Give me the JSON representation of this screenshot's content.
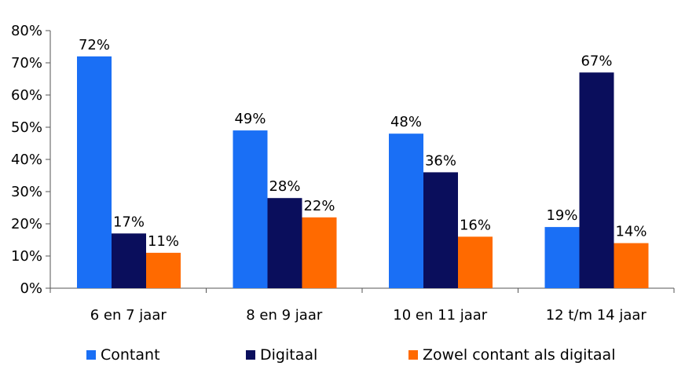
{
  "chart_data": {
    "type": "bar",
    "title": "",
    "xlabel": "",
    "ylabel": "",
    "categories": [
      "6 en 7 jaar",
      "8 en 9 jaar",
      "10 en 11 jaar",
      "12 t/m 14 jaar"
    ],
    "series": [
      {
        "name": "Contant",
        "values": [
          72,
          49,
          48,
          19
        ],
        "color": "#1a6ff5"
      },
      {
        "name": "Digitaal",
        "values": [
          17,
          28,
          36,
          67
        ],
        "color": "#0a0e5c"
      },
      {
        "name": "Zowel contant als digitaal",
        "values": [
          11,
          22,
          16,
          14
        ],
        "color": "#ff6a00"
      }
    ],
    "ylim": [
      0,
      80
    ],
    "yticks": [
      "0%",
      "10%",
      "20%",
      "30%",
      "40%",
      "50%",
      "60%",
      "70%",
      "80%"
    ],
    "value_suffix": "%",
    "grid": false,
    "legend_position": "bottom"
  }
}
